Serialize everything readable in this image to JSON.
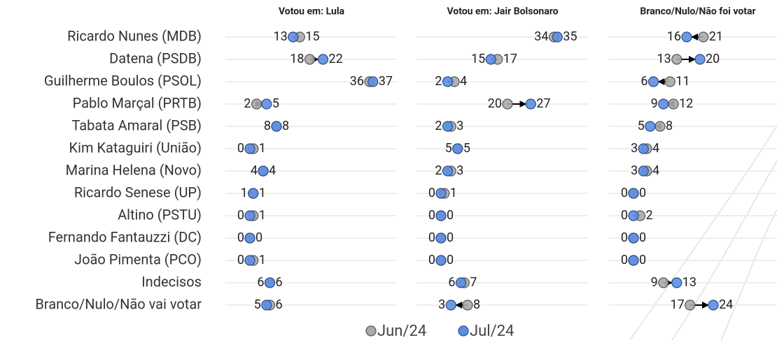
{
  "chart_data": {
    "type": "dumbbell",
    "categories": [
      "Ricardo Nunes (MDB)",
      "Datena (PSDB)",
      "Guilherme Boulos (PSOL)",
      "Pablo Marçal (PRTB)",
      "Tabata Amaral (PSB)",
      "Kim Kataguiri (União)",
      "Marina Helena (Novo)",
      "Ricardo Senese (UP)",
      "Altino (PSTU)",
      "Fernando Fantauzzi (DC)",
      "João Pimenta (PCO)",
      "Indecisos",
      "Branco/Nulo/Não vai votar"
    ],
    "series": [
      {
        "name": "Jun/24",
        "color": "#aaaaaa"
      },
      {
        "name": "Jul/24",
        "color": "#5b8fe0"
      }
    ],
    "panels": [
      {
        "title": "Votou em: Lula",
        "values": [
          [
            15,
            18,
            36,
            2,
            8,
            1,
            4,
            1,
            1,
            0,
            1,
            6,
            6
          ],
          [
            13,
            22,
            37,
            5,
            8,
            0,
            4,
            1,
            0,
            0,
            0,
            6,
            5
          ]
        ]
      },
      {
        "title": "Votou em: Jair Bolsonaro",
        "values": [
          [
            34,
            17,
            4,
            20,
            3,
            5,
            3,
            1,
            0,
            0,
            0,
            7,
            8
          ],
          [
            35,
            15,
            2,
            27,
            2,
            5,
            2,
            0,
            0,
            0,
            0,
            6,
            3
          ]
        ]
      },
      {
        "title": "Branco/Nulo/Não foi votar",
        "values": [
          [
            21,
            13,
            11,
            12,
            8,
            4,
            4,
            0,
            2,
            0,
            0,
            9,
            17
          ],
          [
            16,
            20,
            6,
            9,
            5,
            3,
            3,
            0,
            0,
            0,
            0,
            13,
            24
          ]
        ]
      }
    ]
  }
}
